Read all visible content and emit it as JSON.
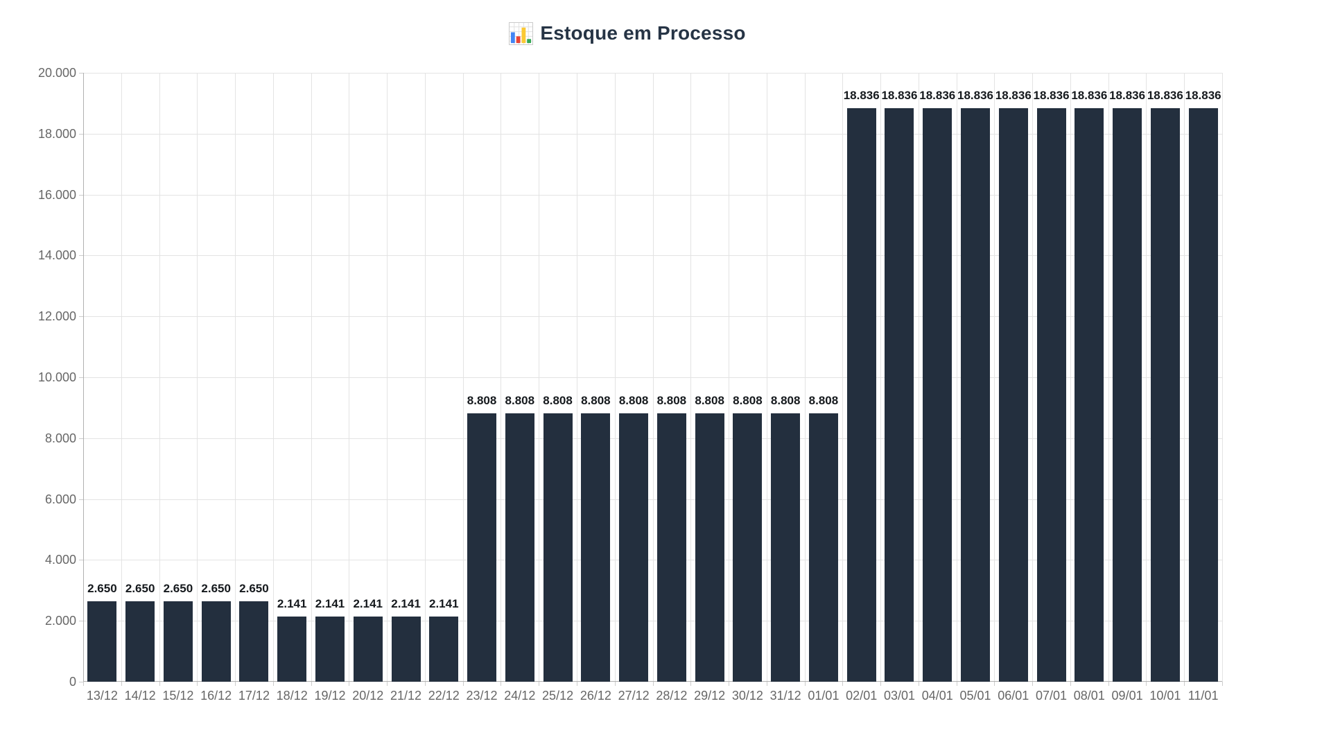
{
  "page": {
    "background": "#ffffff"
  },
  "header": {
    "icon_char": "📊",
    "title": "Estoque em Processo"
  },
  "chart_data": {
    "type": "bar",
    "title": "Estoque em Processo",
    "categories": [
      "13/12",
      "14/12",
      "15/12",
      "16/12",
      "17/12",
      "18/12",
      "19/12",
      "20/12",
      "21/12",
      "22/12",
      "23/12",
      "24/12",
      "25/12",
      "26/12",
      "27/12",
      "28/12",
      "29/12",
      "30/12",
      "31/12",
      "01/01",
      "02/01",
      "03/01",
      "04/01",
      "05/01",
      "06/01",
      "07/01",
      "08/01",
      "09/01",
      "10/01",
      "11/01"
    ],
    "values": [
      2650,
      2650,
      2650,
      2650,
      2650,
      2141,
      2141,
      2141,
      2141,
      2141,
      8808,
      8808,
      8808,
      8808,
      8808,
      8808,
      8808,
      8808,
      8808,
      8808,
      18836,
      18836,
      18836,
      18836,
      18836,
      18836,
      18836,
      18836,
      18836,
      18836
    ],
    "value_labels": [
      "2.650",
      "2.650",
      "2.650",
      "2.650",
      "2.650",
      "2.141",
      "2.141",
      "2.141",
      "2.141",
      "2.141",
      "8.808",
      "8.808",
      "8.808",
      "8.808",
      "8.808",
      "8.808",
      "8.808",
      "8.808",
      "8.808",
      "8.808",
      "18.836",
      "18.836",
      "18.836",
      "18.836",
      "18.836",
      "18.836",
      "18.836",
      "18.836",
      "18.836",
      "18.836"
    ],
    "xlabel": "",
    "ylabel": "",
    "y_axis": {
      "min": 0,
      "max": 20000,
      "step": 2000,
      "tick_labels": [
        "0",
        "2.000",
        "4.000",
        "6.000",
        "8.000",
        "10.000",
        "12.000",
        "14.000",
        "16.000",
        "18.000",
        "20.000"
      ]
    },
    "grid": true,
    "legend": "none",
    "colors": {
      "bar": "#232f3e",
      "value_label": "#15191d",
      "axis_label": "#666666",
      "grid_line": "#e3e3e3",
      "axis_line": "#b0b0b0",
      "tick_mark": "#cccccc",
      "title": "#263445"
    }
  }
}
